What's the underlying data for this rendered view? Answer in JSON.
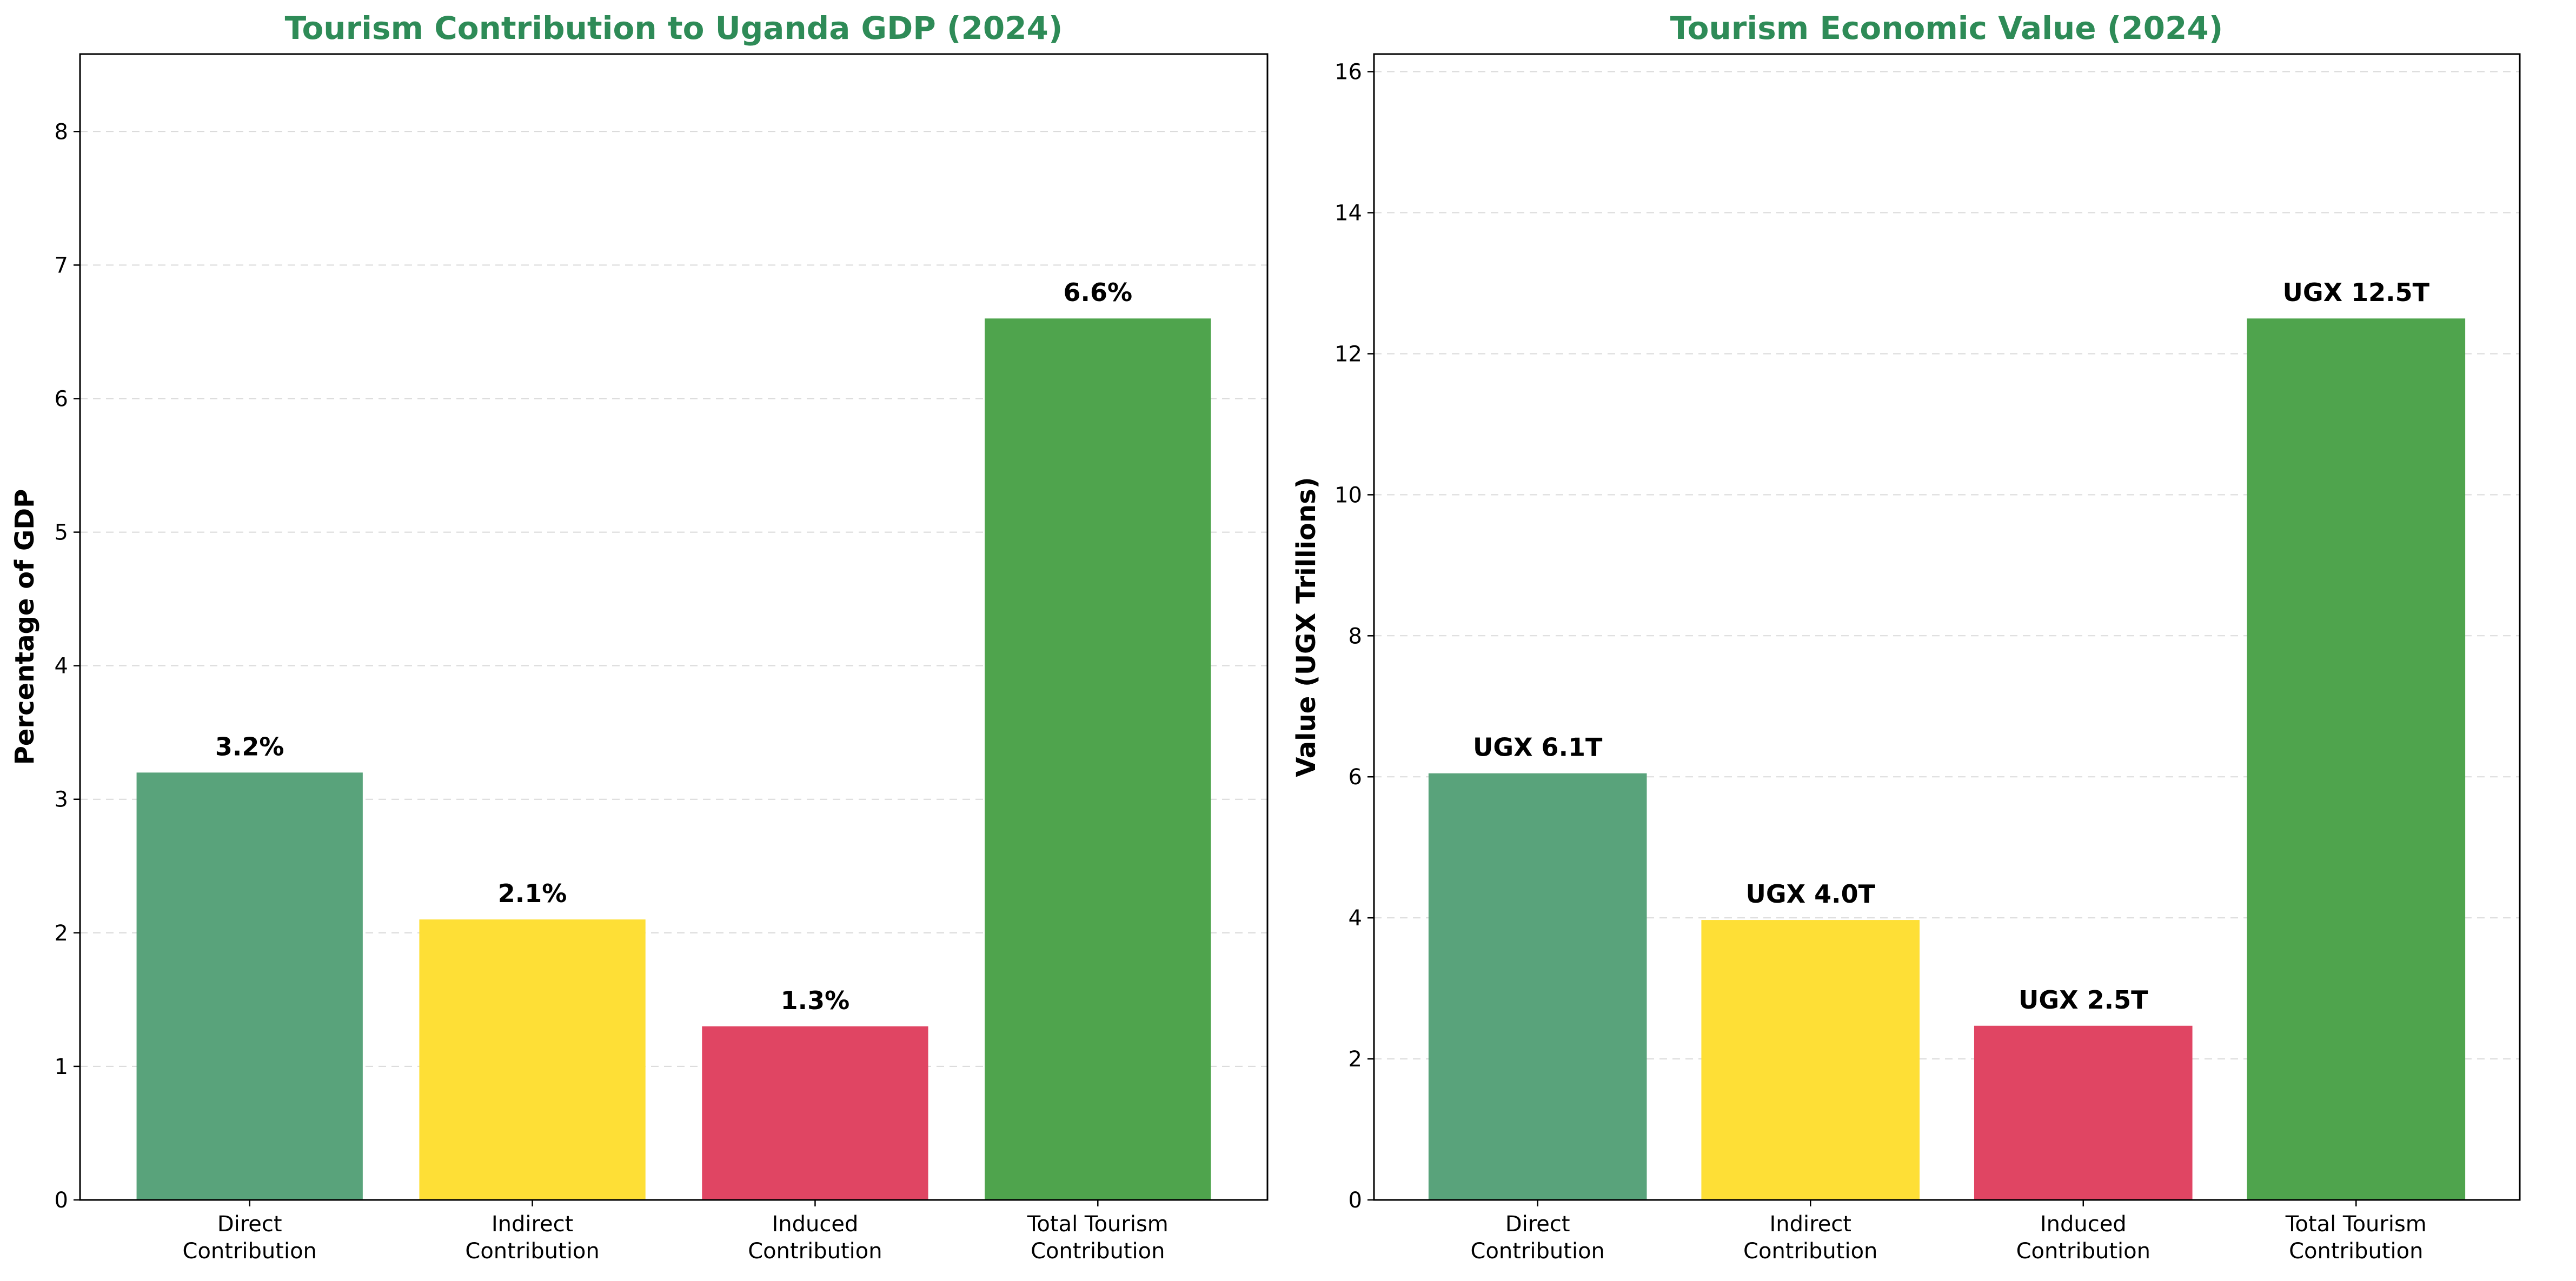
{
  "colors": {
    "title": "#2e8b57",
    "grid": "#d9d9d9",
    "axis": "#000000"
  },
  "chart_data": [
    {
      "type": "bar",
      "title": "Tourism Contribution to Uganda GDP (2024)",
      "xlabel": "",
      "ylabel": "Percentage of GDP",
      "ylim": [
        0,
        8.58
      ],
      "yticks": [
        0,
        1,
        2,
        3,
        4,
        5,
        6,
        7,
        8
      ],
      "grid": "y-dashed",
      "categories": [
        [
          "Direct",
          "Contribution"
        ],
        [
          "Indirect",
          "Contribution"
        ],
        [
          "Induced",
          "Contribution"
        ],
        [
          "Total Tourism",
          "Contribution"
        ]
      ],
      "values": [
        3.2,
        2.1,
        1.3,
        6.6
      ],
      "labels": [
        "3.2%",
        "2.1%",
        "1.3%",
        "6.6%"
      ],
      "bar_colors": [
        "#59a37b",
        "#fedf36",
        "#e04563",
        "#4fa44d"
      ]
    },
    {
      "type": "bar",
      "title": "Tourism Economic Value (2024)",
      "xlabel": "",
      "ylabel": "Value (UGX Trillions)",
      "ylim": [
        0,
        16.25
      ],
      "yticks": [
        0,
        2,
        4,
        6,
        8,
        10,
        12,
        14,
        16
      ],
      "grid": "y-dashed",
      "categories": [
        [
          "Direct",
          "Contribution"
        ],
        [
          "Indirect",
          "Contribution"
        ],
        [
          "Induced",
          "Contribution"
        ],
        [
          "Total Tourism",
          "Contribution"
        ]
      ],
      "values": [
        6.05,
        3.97,
        2.47,
        12.5
      ],
      "labels": [
        "UGX 6.1T",
        "UGX 4.0T",
        "UGX 2.5T",
        "UGX 12.5T"
      ],
      "bar_colors": [
        "#59a37b",
        "#fedf36",
        "#e04563",
        "#4fa44d"
      ]
    }
  ]
}
